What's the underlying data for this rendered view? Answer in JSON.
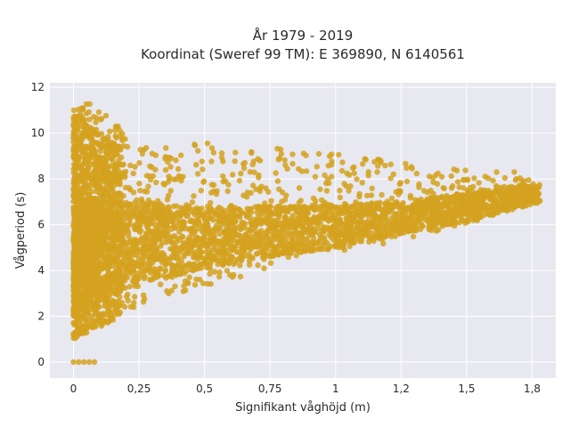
{
  "chart_data": {
    "type": "scatter",
    "title_line1": "År 1979 - 2019",
    "title_line2": "Koordinat (Sweref 99 TM): E 369890, N 6140561",
    "xlabel": "Signifikant våghöjd (m)",
    "ylabel": "Vågperiod (s)",
    "xlim": [
      -0.09,
      1.84
    ],
    "ylim": [
      -0.7,
      12.2
    ],
    "x_ticks": [
      {
        "value": 0,
        "label": "0"
      },
      {
        "value": 0.25,
        "label": "0,25"
      },
      {
        "value": 0.5,
        "label": "0,5"
      },
      {
        "value": 0.75,
        "label": "0,75"
      },
      {
        "value": 1,
        "label": "1"
      },
      {
        "value": 1.25,
        "label": "1,2"
      },
      {
        "value": 1.5,
        "label": "1,5"
      },
      {
        "value": 1.75,
        "label": "1,8"
      }
    ],
    "y_ticks": [
      {
        "value": 0,
        "label": "0"
      },
      {
        "value": 2,
        "label": "2"
      },
      {
        "value": 4,
        "label": "4"
      },
      {
        "value": 6,
        "label": "6"
      },
      {
        "value": 8,
        "label": "8"
      },
      {
        "value": 10,
        "label": "10"
      },
      {
        "value": 12,
        "label": "12"
      }
    ],
    "grid": true,
    "marker_color": "#d4a21f",
    "background_color": "#e8e8f0",
    "point_cloud": {
      "lower_edge": [
        [
          0,
          1.0
        ],
        [
          0.1,
          1.5
        ],
        [
          0.25,
          2.5
        ],
        [
          0.5,
          3.3
        ],
        [
          0.75,
          4.0
        ],
        [
          1.0,
          4.7
        ],
        [
          1.25,
          5.3
        ],
        [
          1.5,
          6.0
        ],
        [
          1.75,
          7.0
        ]
      ],
      "upper_edge": [
        [
          0,
          11.0
        ],
        [
          0.05,
          11.5
        ],
        [
          0.1,
          11.0
        ],
        [
          0.25,
          9.5
        ],
        [
          0.5,
          9.6
        ],
        [
          0.75,
          9.4
        ],
        [
          1.0,
          9.2
        ],
        [
          1.25,
          8.7
        ],
        [
          1.5,
          8.4
        ],
        [
          1.75,
          8.3
        ]
      ],
      "dense_band": [
        [
          0,
          2.0,
          7.0
        ],
        [
          0.25,
          3.5,
          7.0
        ],
        [
          0.5,
          4.0,
          6.8
        ],
        [
          0.75,
          4.6,
          6.8
        ],
        [
          1.0,
          5.0,
          6.9
        ],
        [
          1.25,
          5.6,
          7.0
        ],
        [
          1.5,
          6.1,
          7.4
        ],
        [
          1.75,
          6.9,
          7.8
        ]
      ],
      "zero_period_points": [
        [
          0.0,
          0
        ],
        [
          0.02,
          0
        ],
        [
          0.04,
          0
        ],
        [
          0.06,
          0
        ],
        [
          0.08,
          0
        ]
      ]
    }
  }
}
